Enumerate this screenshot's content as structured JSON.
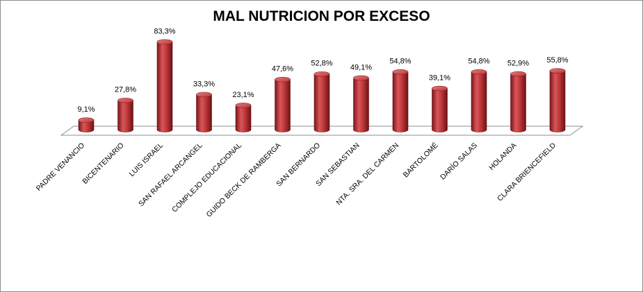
{
  "chart_data": {
    "type": "bar",
    "style": "3d-cylinder",
    "title": "MAL NUTRICION POR EXCESO",
    "xlabel": "",
    "ylabel": "",
    "ylim": [
      0,
      85
    ],
    "grid": false,
    "legend": "none",
    "bar_color": "#c0393b",
    "categories": [
      "PADRE VENANCIO",
      "BICENTENARIO",
      "LUIS ISRAEL",
      "SAN RAFAEL ARCANGEL",
      "COMPLEJO EDUCACIONAL",
      "GUIDO BECK DE RAMBERGA",
      "SAN BERNARDO",
      "SAN SEBASTIAN",
      "NTA. SRA. DEL CARMEN",
      "BARTOLOMÉ",
      "DARÍO SALAS",
      "HOLANDA",
      "CLARA BRIENCEFIELD"
    ],
    "values": [
      9.1,
      27.8,
      83.3,
      33.3,
      23.1,
      47.6,
      52.8,
      49.1,
      54.8,
      39.1,
      54.8,
      52.9,
      55.8
    ],
    "data_labels": [
      "9,1%",
      "27,8%",
      "83,3%",
      "33,3%",
      "23,1%",
      "47,6%",
      "52,8%",
      "49,1%",
      "54,8%",
      "39,1%",
      "54,8%",
      "52,9%",
      "55,8%"
    ]
  }
}
